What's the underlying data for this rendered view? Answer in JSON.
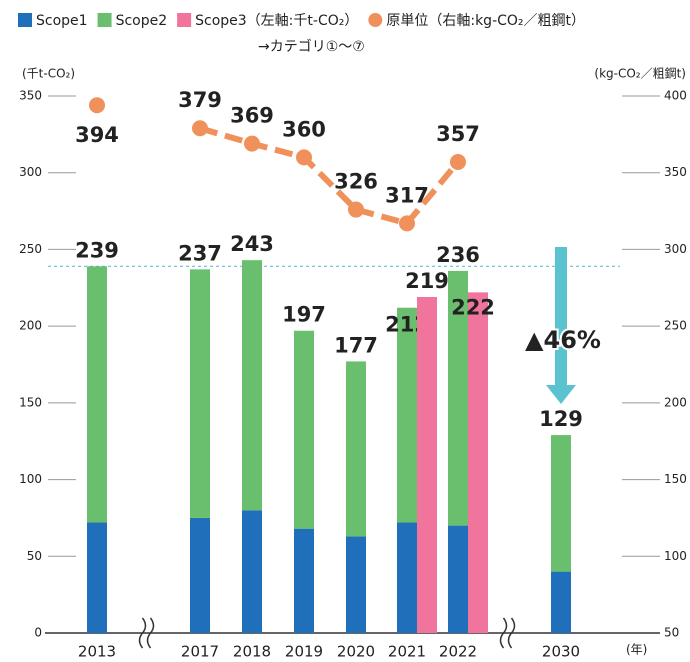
{
  "chart_data": {
    "type": "bar",
    "categories": [
      "2013",
      "2017",
      "2018",
      "2019",
      "2020",
      "2021",
      "2022",
      "2030"
    ],
    "axis_breaks": [
      1,
      7
    ],
    "series": [
      {
        "name": "Scope1",
        "color": "#1f6fba",
        "values": [
          72,
          75,
          80,
          68,
          63,
          72,
          70,
          40
        ]
      },
      {
        "name": "Scope2",
        "color": "#6abf6e",
        "values": [
          167,
          162,
          163,
          129,
          114,
          140,
          166,
          89
        ]
      },
      {
        "name": "Scope3（左軸:千t-CO₂）",
        "color": "#f0749c",
        "values": [
          null,
          null,
          null,
          null,
          null,
          219,
          222,
          null
        ]
      },
      {
        "name": "原単位（右軸:kg-CO₂／粗鋼t）",
        "color": "#f0905a",
        "type": "line",
        "axis": "y2",
        "values": [
          394,
          379,
          369,
          360,
          326,
          317,
          357,
          null
        ]
      }
    ],
    "legend_note": "→カテゴリ①〜⑦",
    "totals": [
      239,
      237,
      243,
      197,
      177,
      212,
      236,
      129
    ],
    "reference_value": 239,
    "annotation": "▲46%",
    "ylabel": "(千t-CO₂)",
    "y2label": "(kg-CO₂／粗鋼t)",
    "xlabel": "(年)",
    "ylim": [
      0,
      350
    ],
    "yticks": [
      0,
      50,
      100,
      150,
      200,
      250,
      300,
      350
    ],
    "y2lim": [
      50,
      400
    ],
    "y2ticks": [
      50,
      100,
      150,
      200,
      250,
      300,
      350,
      400
    ]
  }
}
